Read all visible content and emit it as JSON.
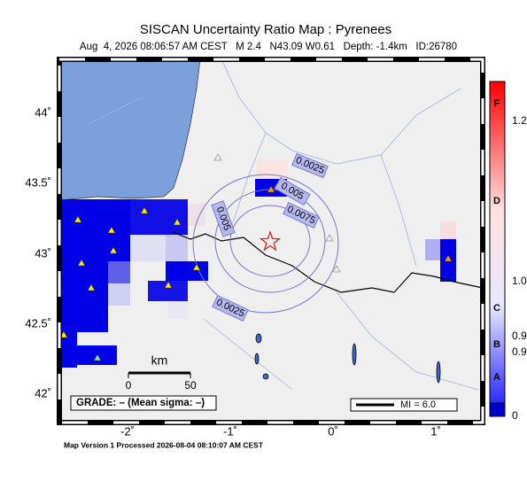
{
  "title": "SISCAN Uncertainty Ratio Map : Pyrenees",
  "subtitle": "Aug  4, 2026 08:06:57 AM CEST   M 2.4   N43.09 W0.61   Depth: -1.4km   ID:26780",
  "lat_labels": [
    "44˚",
    "43.5˚",
    "43˚",
    "42.5˚",
    "42˚"
  ],
  "lon_labels": [
    "-2˚",
    "-1˚",
    "0˚",
    "1˚"
  ],
  "contour_labels": [
    "0.0025",
    "0.005",
    "0.0075",
    "0.005",
    "0.0025"
  ],
  "scale": {
    "unit": "km",
    "start": "0",
    "end": "50"
  },
  "grade": "GRADE: – (Mean sigma: –)",
  "mi": "MI = 6.0",
  "colorbar": {
    "letters": [
      "F",
      "D",
      "C",
      "B",
      "A"
    ],
    "ticks": [
      "1.2",
      "1.0",
      "0.9",
      "0.9",
      "0"
    ]
  },
  "footer": "Map Version 1 Processed 2026-08-04 08:10:07 AM CEST"
}
